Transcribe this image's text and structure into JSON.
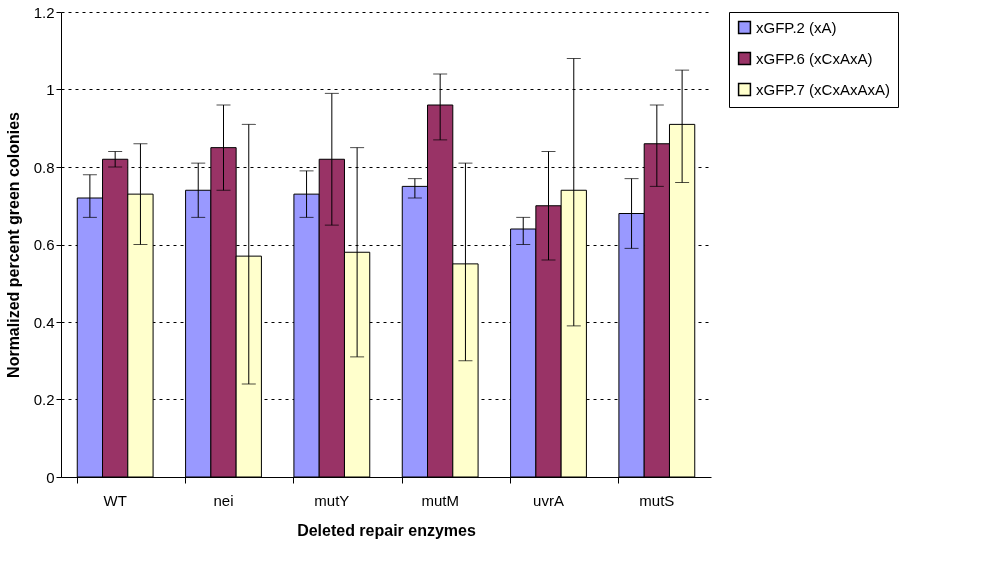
{
  "chart_data": {
    "type": "bar",
    "xlabel": "Deleted repair enzymes",
    "ylabel": "Normalized percent green colonies",
    "categories": [
      "WT",
      "nei",
      "mutY",
      "mutM",
      "uvrA",
      "mutS"
    ],
    "series": [
      {
        "name": "xGFP.2 (xA)",
        "color": "#9999ff",
        "values": [
          0.72,
          0.74,
          0.73,
          0.75,
          0.64,
          0.68
        ],
        "errors": [
          [
            0.67,
            0.78
          ],
          [
            0.67,
            0.81
          ],
          [
            0.67,
            0.79
          ],
          [
            0.72,
            0.77
          ],
          [
            0.6,
            0.67
          ],
          [
            0.59,
            0.77
          ]
        ]
      },
      {
        "name": "xGFP.6 (xCxAxA)",
        "color": "#993366",
        "values": [
          0.82,
          0.85,
          0.82,
          0.96,
          0.7,
          0.86
        ],
        "errors": [
          [
            0.8,
            0.84
          ],
          [
            0.74,
            0.96
          ],
          [
            0.65,
            0.99
          ],
          [
            0.87,
            1.04
          ],
          [
            0.56,
            0.84
          ],
          [
            0.75,
            0.96
          ]
        ]
      },
      {
        "name": "xGFP.7 (xCxAxAxA)",
        "color": "#ffffcc",
        "values": [
          0.73,
          0.57,
          0.58,
          0.55,
          0.74,
          0.91
        ],
        "errors": [
          [
            0.6,
            0.86
          ],
          [
            0.24,
            0.91
          ],
          [
            0.31,
            0.85
          ],
          [
            0.3,
            0.81
          ],
          [
            0.39,
            1.08
          ],
          [
            0.76,
            1.05
          ]
        ]
      }
    ],
    "ylim": [
      0,
      1.2
    ],
    "yticks": [
      {
        "value": 0,
        "label": "0"
      },
      0.2,
      0.4,
      0.6,
      0.8,
      {
        "value": 1,
        "label": "1"
      },
      1.2
    ],
    "grid": "y",
    "legend": "right"
  }
}
